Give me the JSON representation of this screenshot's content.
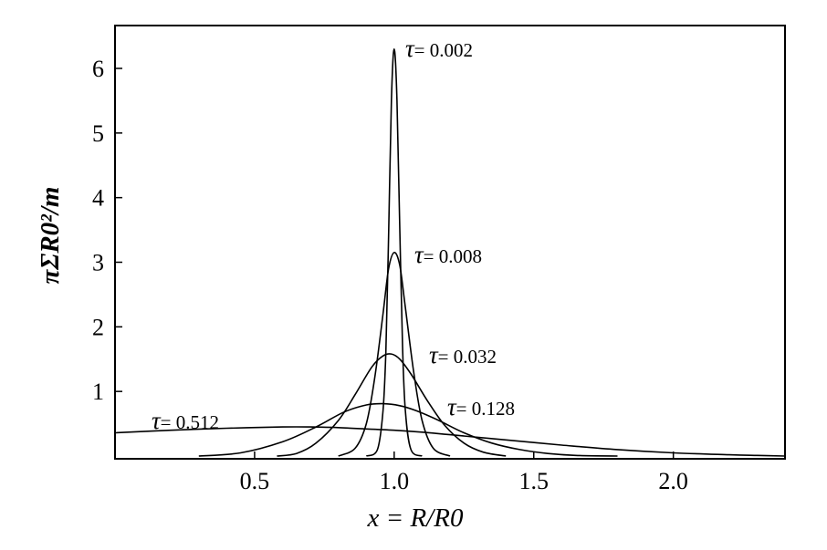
{
  "chart_data": {
    "type": "line",
    "xlabel": "x = R/R0",
    "ylabel": "πΣR0²/m",
    "xlim": [
      0,
      2.4
    ],
    "ylim": [
      0,
      6.6
    ],
    "x_ticks": [
      "0.5",
      "1.0",
      "1.5",
      "2.0"
    ],
    "y_ticks": [
      "1",
      "2",
      "3",
      "4",
      "5",
      "6"
    ],
    "grid": false,
    "legend": "none",
    "series": [
      {
        "name": "τ= 0.002",
        "tau_symbol": "τ",
        "tau_value": "= 0.002",
        "x": [
          0.9,
          0.94,
          0.96,
          0.97,
          0.98,
          0.99,
          1.0,
          1.01,
          1.02,
          1.03,
          1.04,
          1.06,
          1.1
        ],
        "y": [
          0.0,
          0.1,
          0.7,
          1.6,
          3.4,
          5.5,
          6.3,
          5.5,
          3.5,
          1.7,
          0.7,
          0.1,
          0.0
        ]
      },
      {
        "name": "τ= 0.008",
        "tau_symbol": "τ",
        "tau_value": "= 0.008",
        "x": [
          0.8,
          0.86,
          0.9,
          0.93,
          0.96,
          0.98,
          1.0,
          1.02,
          1.04,
          1.07,
          1.1,
          1.14,
          1.2
        ],
        "y": [
          0.0,
          0.12,
          0.5,
          1.2,
          2.2,
          2.9,
          3.15,
          2.95,
          2.3,
          1.3,
          0.55,
          0.12,
          0.0
        ]
      },
      {
        "name": "τ= 0.032",
        "tau_symbol": "τ",
        "tau_value": "= 0.032",
        "x": [
          0.58,
          0.65,
          0.72,
          0.8,
          0.86,
          0.92,
          0.96,
          0.99,
          1.02,
          1.06,
          1.12,
          1.18,
          1.25,
          1.32,
          1.4
        ],
        "y": [
          0.0,
          0.04,
          0.2,
          0.55,
          0.95,
          1.38,
          1.55,
          1.58,
          1.5,
          1.27,
          0.85,
          0.48,
          0.2,
          0.06,
          0.0
        ]
      },
      {
        "name": "τ= 0.128",
        "tau_symbol": "τ",
        "tau_value": "= 0.128",
        "x": [
          0.3,
          0.45,
          0.6,
          0.72,
          0.82,
          0.9,
          0.96,
          1.02,
          1.08,
          1.16,
          1.25,
          1.35,
          1.45,
          1.55,
          1.65,
          1.8
        ],
        "y": [
          0.0,
          0.05,
          0.22,
          0.45,
          0.68,
          0.79,
          0.81,
          0.78,
          0.7,
          0.55,
          0.36,
          0.2,
          0.1,
          0.04,
          0.01,
          0.0
        ]
      },
      {
        "name": "τ= 0.512",
        "tau_symbol": "τ",
        "tau_value": "= 0.512",
        "x": [
          0.0,
          0.2,
          0.4,
          0.6,
          0.7,
          0.8,
          0.9,
          1.0,
          1.1,
          1.2,
          1.4,
          1.6,
          1.8,
          2.0,
          2.2,
          2.3,
          2.4
        ],
        "y": [
          0.36,
          0.4,
          0.43,
          0.45,
          0.45,
          0.44,
          0.42,
          0.4,
          0.37,
          0.33,
          0.25,
          0.17,
          0.1,
          0.05,
          0.02,
          0.01,
          0.0
        ]
      }
    ]
  }
}
